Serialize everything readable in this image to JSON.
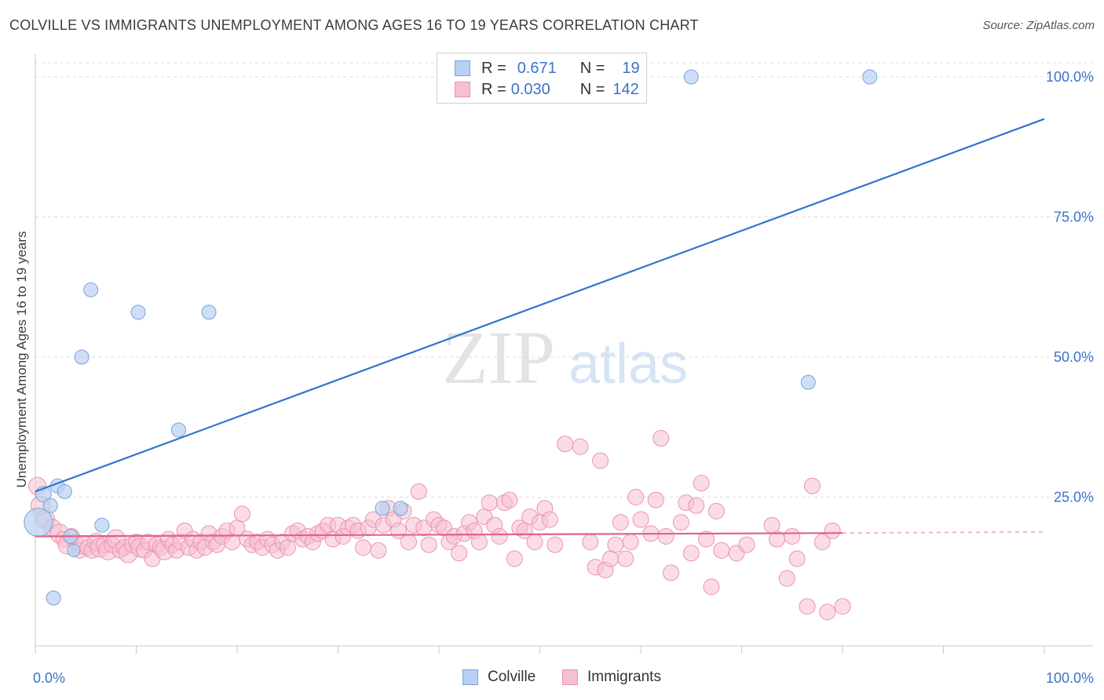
{
  "title": "COLVILLE VS IMMIGRANTS UNEMPLOYMENT AMONG AGES 16 TO 19 YEARS CORRELATION CHART",
  "source": "Source: ZipAtlas.com",
  "watermark": {
    "zip": "ZIP",
    "atlas": "atlas"
  },
  "legend_top": {
    "colville": {
      "r_label": "R =",
      "r_value": "0.671",
      "n_label": "N =",
      "n_value": "19"
    },
    "immigrants": {
      "r_label": "R =",
      "r_value": "0.030",
      "n_label": "N =",
      "n_value": "142"
    }
  },
  "legend_bottom": {
    "colville": "Colville",
    "immigrants": "Immigrants"
  },
  "colors": {
    "colville_fill": "#b8d0f2",
    "colville_stroke": "#7aa3dc",
    "colville_line": "#3473cc",
    "immigrants_fill": "#f7c0d0",
    "immigrants_stroke": "#e994b0",
    "immigrants_line": "#e0628d",
    "axis_text": "#3b73c7"
  },
  "chart_data": {
    "type": "scatter",
    "title": "COLVILLE VS IMMIGRANTS UNEMPLOYMENT AMONG AGES 16 TO 19 YEARS CORRELATION CHART",
    "xlabel": "",
    "ylabel": "Unemployment Among Ages 16 to 19 years",
    "xlim": [
      0,
      100
    ],
    "ylim": [
      0,
      100
    ],
    "x_tick_labels": [
      "0.0%",
      "100.0%"
    ],
    "y_ticks": [
      25,
      50,
      75,
      100
    ],
    "y_tick_labels": [
      "25.0%",
      "50.0%",
      "75.0%",
      "100.0%"
    ],
    "grid": "horizontal dashed",
    "legend_position": "top-center",
    "series": [
      {
        "name": "Colville",
        "R": 0.671,
        "N": 19,
        "trend": {
          "x": [
            0,
            100
          ],
          "y": [
            26.0,
            92.5
          ]
        },
        "points": [
          [
            0.3,
            20.5,
            18
          ],
          [
            0.8,
            25.5,
            10
          ],
          [
            1.5,
            23.5,
            9
          ],
          [
            2.2,
            27.0,
            9
          ],
          [
            2.9,
            26.0,
            9
          ],
          [
            3.5,
            18.0,
            9
          ],
          [
            3.8,
            15.5,
            8
          ],
          [
            1.8,
            7.0,
            9
          ],
          [
            4.6,
            50.0,
            9
          ],
          [
            5.5,
            62.0,
            9
          ],
          [
            6.6,
            20.0,
            9
          ],
          [
            10.2,
            58.0,
            9
          ],
          [
            14.2,
            37.0,
            9
          ],
          [
            17.2,
            58.0,
            9
          ],
          [
            34.4,
            23.0,
            9
          ],
          [
            36.2,
            23.0,
            9
          ],
          [
            65.0,
            100.0,
            9
          ],
          [
            82.7,
            100.0,
            9
          ],
          [
            76.6,
            45.5,
            9
          ]
        ]
      },
      {
        "name": "Immigrants",
        "R": 0.03,
        "N": 142,
        "trend": {
          "x": [
            0,
            80
          ],
          "y": [
            18.0,
            18.6
          ]
        },
        "trend_dashed": {
          "x": [
            80,
            100
          ],
          "y": [
            18.6,
            18.8
          ]
        },
        "points": [
          [
            0.2,
            27.0,
            11
          ],
          [
            0.5,
            23.5,
            12
          ],
          [
            1.0,
            21.0,
            12
          ],
          [
            1.7,
            19.5,
            11
          ],
          [
            2.4,
            18.5,
            12
          ],
          [
            2.8,
            17.5,
            10
          ],
          [
            3.2,
            16.5,
            12
          ],
          [
            3.6,
            18.0,
            10
          ],
          [
            4.0,
            17.0,
            10
          ],
          [
            4.4,
            15.5,
            10
          ],
          [
            4.8,
            16.5,
            12
          ],
          [
            5.2,
            16.0,
            10
          ],
          [
            5.6,
            15.5,
            10
          ],
          [
            6.0,
            17.0,
            11
          ],
          [
            6.4,
            16.0,
            12
          ],
          [
            6.8,
            16.5,
            10
          ],
          [
            7.2,
            15.5,
            12
          ],
          [
            7.6,
            16.5,
            10
          ],
          [
            8.0,
            17.5,
            12
          ],
          [
            8.4,
            15.5,
            10
          ],
          [
            8.8,
            16.0,
            10
          ],
          [
            9.2,
            15.0,
            12
          ],
          [
            9.6,
            16.5,
            10
          ],
          [
            10.0,
            17.0,
            10
          ],
          [
            10.4,
            16.0,
            12
          ],
          [
            10.8,
            15.5,
            10
          ],
          [
            11.2,
            17.0,
            10
          ],
          [
            11.6,
            14.0,
            10
          ],
          [
            12.0,
            16.5,
            10
          ],
          [
            12.4,
            16.0,
            10
          ],
          [
            12.8,
            15.5,
            12
          ],
          [
            13.2,
            17.5,
            10
          ],
          [
            13.6,
            16.5,
            10
          ],
          [
            14.0,
            15.5,
            10
          ],
          [
            14.4,
            17.0,
            10
          ],
          [
            14.8,
            19.0,
            10
          ],
          [
            15.2,
            16.0,
            10
          ],
          [
            15.6,
            17.5,
            10
          ],
          [
            16.0,
            15.5,
            10
          ],
          [
            16.4,
            17.0,
            10
          ],
          [
            16.8,
            16.0,
            10
          ],
          [
            17.2,
            18.5,
            10
          ],
          [
            17.6,
            17.0,
            10
          ],
          [
            18.0,
            16.5,
            10
          ],
          [
            18.5,
            18.0,
            10
          ],
          [
            19.0,
            19.0,
            10
          ],
          [
            19.5,
            17.0,
            10
          ],
          [
            20.0,
            19.5,
            10
          ],
          [
            20.5,
            22.0,
            10
          ],
          [
            21.0,
            17.5,
            10
          ],
          [
            21.5,
            16.5,
            10
          ],
          [
            22.0,
            17.0,
            10
          ],
          [
            22.5,
            16.0,
            10
          ],
          [
            23.0,
            17.5,
            10
          ],
          [
            23.5,
            16.5,
            10
          ],
          [
            24.0,
            15.5,
            10
          ],
          [
            24.5,
            17.0,
            10
          ],
          [
            25.0,
            16.0,
            10
          ],
          [
            25.5,
            18.5,
            10
          ],
          [
            26.0,
            19.0,
            10
          ],
          [
            26.5,
            17.5,
            10
          ],
          [
            27.0,
            18.0,
            10
          ],
          [
            27.5,
            17.0,
            10
          ],
          [
            28.0,
            18.5,
            10
          ],
          [
            28.5,
            19.0,
            10
          ],
          [
            29.0,
            20.0,
            10
          ],
          [
            29.5,
            17.5,
            10
          ],
          [
            30.0,
            20.0,
            10
          ],
          [
            30.5,
            18.0,
            10
          ],
          [
            31.0,
            19.5,
            10
          ],
          [
            31.5,
            20.0,
            10
          ],
          [
            32.0,
            19.0,
            10
          ],
          [
            32.5,
            16.0,
            10
          ],
          [
            33.0,
            19.5,
            10
          ],
          [
            33.5,
            21.0,
            10
          ],
          [
            34.0,
            15.5,
            10
          ],
          [
            34.5,
            20.0,
            10
          ],
          [
            35.0,
            23.0,
            10
          ],
          [
            35.5,
            21.0,
            10
          ],
          [
            36.0,
            19.0,
            10
          ],
          [
            36.5,
            22.5,
            10
          ],
          [
            37.0,
            17.0,
            10
          ],
          [
            37.5,
            20.0,
            10
          ],
          [
            38.0,
            26.0,
            10
          ],
          [
            38.5,
            19.5,
            10
          ],
          [
            39.0,
            16.5,
            10
          ],
          [
            39.5,
            21.0,
            10
          ],
          [
            40.0,
            20.0,
            10
          ],
          [
            40.5,
            19.5,
            10
          ],
          [
            41.0,
            17.0,
            10
          ],
          [
            41.5,
            18.0,
            10
          ],
          [
            42.0,
            15.0,
            10
          ],
          [
            42.5,
            18.5,
            10
          ],
          [
            43.0,
            20.5,
            10
          ],
          [
            43.5,
            19.0,
            10
          ],
          [
            44.0,
            17.0,
            10
          ],
          [
            44.5,
            21.5,
            10
          ],
          [
            45.0,
            24.0,
            10
          ],
          [
            45.5,
            20.0,
            10
          ],
          [
            46.0,
            18.0,
            10
          ],
          [
            46.5,
            24.0,
            10
          ],
          [
            47.0,
            24.5,
            10
          ],
          [
            47.5,
            14.0,
            10
          ],
          [
            48.0,
            19.5,
            10
          ],
          [
            48.5,
            19.0,
            10
          ],
          [
            49.0,
            21.5,
            10
          ],
          [
            49.5,
            17.0,
            10
          ],
          [
            50.0,
            20.5,
            10
          ],
          [
            50.5,
            23.0,
            10
          ],
          [
            51.0,
            21.0,
            10
          ],
          [
            51.5,
            16.5,
            10
          ],
          [
            52.5,
            34.5,
            10
          ],
          [
            54.0,
            34.0,
            10
          ],
          [
            55.0,
            17.0,
            10
          ],
          [
            55.5,
            12.5,
            10
          ],
          [
            56.0,
            31.5,
            10
          ],
          [
            56.5,
            12.0,
            10
          ],
          [
            57.0,
            14.0,
            10
          ],
          [
            57.5,
            16.5,
            10
          ],
          [
            58.0,
            20.5,
            10
          ],
          [
            58.5,
            14.0,
            10
          ],
          [
            59.0,
            17.0,
            10
          ],
          [
            59.5,
            25.0,
            10
          ],
          [
            60.0,
            21.0,
            10
          ],
          [
            61.0,
            18.5,
            10
          ],
          [
            61.5,
            24.5,
            10
          ],
          [
            62.0,
            35.5,
            10
          ],
          [
            62.5,
            18.0,
            10
          ],
          [
            63.0,
            11.5,
            10
          ],
          [
            64.0,
            20.5,
            10
          ],
          [
            64.5,
            24.0,
            10
          ],
          [
            65.0,
            15.0,
            10
          ],
          [
            65.5,
            23.5,
            10
          ],
          [
            66.0,
            27.5,
            10
          ],
          [
            66.5,
            17.5,
            10
          ],
          [
            67.0,
            9.0,
            10
          ],
          [
            67.5,
            22.5,
            10
          ],
          [
            68.0,
            15.5,
            10
          ],
          [
            69.5,
            15.0,
            10
          ],
          [
            70.5,
            16.5,
            10
          ],
          [
            73.0,
            20.0,
            10
          ],
          [
            73.5,
            17.5,
            10
          ],
          [
            74.5,
            10.5,
            10
          ],
          [
            75.0,
            18.0,
            10
          ],
          [
            75.5,
            14.0,
            10
          ],
          [
            76.5,
            5.5,
            10
          ],
          [
            77.0,
            27.0,
            10
          ],
          [
            78.0,
            17.0,
            10
          ],
          [
            78.5,
            4.5,
            10
          ],
          [
            79.0,
            19.0,
            10
          ],
          [
            80.0,
            5.5,
            10
          ]
        ]
      }
    ]
  }
}
